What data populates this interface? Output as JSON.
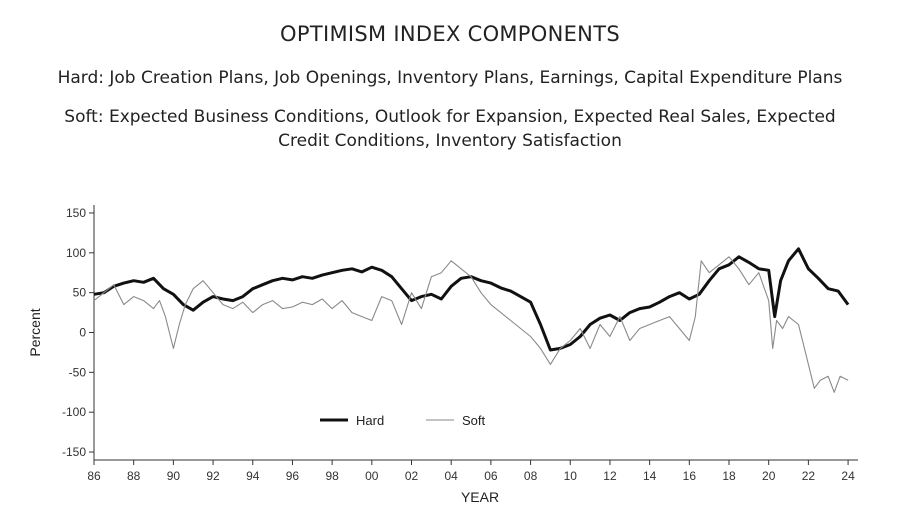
{
  "header": {
    "title": "OPTIMISM INDEX COMPONENTS",
    "hard_line": "Hard: Job Creation Plans, Job Openings, Inventory Plans, Earnings, Capital Expenditure Plans",
    "soft_line_1": "Soft: Expected Business Conditions, Outlook for Expansion, Expected Real Sales, Expected",
    "soft_line_2": "Credit Conditions, Inventory Satisfaction"
  },
  "chart_data": {
    "type": "line",
    "xlabel": "YEAR",
    "ylabel": "Percent",
    "xlim": [
      1986,
      2024.5
    ],
    "ylim": [
      -160,
      160
    ],
    "x_ticks": [
      1986,
      1988,
      1990,
      1992,
      1994,
      1996,
      1998,
      2000,
      2002,
      2004,
      2006,
      2008,
      2010,
      2012,
      2014,
      2016,
      2018,
      2020,
      2022,
      2024
    ],
    "x_tick_labels": [
      "86",
      "88",
      "90",
      "92",
      "94",
      "96",
      "98",
      "00",
      "02",
      "04",
      "06",
      "08",
      "10",
      "12",
      "14",
      "16",
      "18",
      "20",
      "22",
      "24"
    ],
    "y_ticks": [
      150,
      100,
      50,
      0,
      -50,
      -100,
      -150
    ],
    "y_tick_labels": [
      "150",
      "100",
      "50",
      "0",
      "-50",
      "-100",
      "-150"
    ],
    "grid": false,
    "legend": {
      "placement": "bottom-center",
      "entries": [
        "Hard",
        "Soft"
      ]
    },
    "series": [
      {
        "name": "Hard",
        "color": "#111111",
        "x": [
          1986,
          1986.5,
          1987,
          1987.5,
          1988,
          1988.5,
          1989,
          1989.5,
          1990,
          1990.5,
          1991,
          1991.5,
          1992,
          1992.5,
          1993,
          1993.5,
          1994,
          1994.5,
          1995,
          1995.5,
          1996,
          1996.5,
          1997,
          1997.5,
          1998,
          1998.5,
          1999,
          1999.5,
          2000,
          2000.5,
          2001,
          2001.5,
          2002,
          2002.5,
          2003,
          2003.5,
          2004,
          2004.5,
          2005,
          2005.5,
          2006,
          2006.5,
          2007,
          2007.5,
          2008,
          2008.5,
          2009,
          2009.5,
          2010,
          2010.5,
          2011,
          2011.5,
          2012,
          2012.5,
          2013,
          2013.5,
          2014,
          2014.5,
          2015,
          2015.5,
          2016,
          2016.5,
          2017,
          2017.5,
          2018,
          2018.5,
          2019,
          2019.5,
          2020,
          2020.3,
          2020.6,
          2021,
          2021.5,
          2021.8,
          2022,
          2022.5,
          2023,
          2023.5,
          2024
        ],
        "values": [
          48,
          50,
          58,
          62,
          65,
          63,
          68,
          55,
          48,
          35,
          28,
          38,
          45,
          42,
          40,
          45,
          55,
          60,
          65,
          68,
          66,
          70,
          68,
          72,
          75,
          78,
          80,
          76,
          82,
          78,
          70,
          55,
          40,
          45,
          48,
          42,
          58,
          68,
          70,
          65,
          62,
          56,
          52,
          45,
          38,
          10,
          -22,
          -20,
          -15,
          -5,
          10,
          18,
          22,
          15,
          25,
          30,
          32,
          38,
          45,
          50,
          42,
          48,
          65,
          80,
          85,
          95,
          88,
          80,
          78,
          20,
          65,
          90,
          105,
          90,
          80,
          68,
          55,
          52,
          35
        ]
      },
      {
        "name": "Soft",
        "color": "#8a8a8a",
        "x": [
          1986,
          1986.5,
          1987,
          1987.5,
          1988,
          1988.5,
          1989,
          1989.3,
          1989.6,
          1990,
          1990.3,
          1990.6,
          1991,
          1991.5,
          1992,
          1992.5,
          1993,
          1993.5,
          1994,
          1994.5,
          1995,
          1995.5,
          1996,
          1996.5,
          1997,
          1997.5,
          1998,
          1998.5,
          1999,
          1999.5,
          2000,
          2000.5,
          2001,
          2001.5,
          2002,
          2002.5,
          2003,
          2003.5,
          2004,
          2004.5,
          2005,
          2005.5,
          2006,
          2006.5,
          2007,
          2007.5,
          2008,
          2008.5,
          2009,
          2009.5,
          2010,
          2010.5,
          2011,
          2011.5,
          2012,
          2012.5,
          2013,
          2013.5,
          2014,
          2014.5,
          2015,
          2015.5,
          2016,
          2016.3,
          2016.6,
          2017,
          2017.5,
          2018,
          2018.5,
          2019,
          2019.5,
          2020,
          2020.2,
          2020.4,
          2020.7,
          2021,
          2021.5,
          2022,
          2022.3,
          2022.6,
          2023,
          2023.3,
          2023.6,
          2024
        ],
        "values": [
          40,
          50,
          60,
          35,
          45,
          40,
          30,
          40,
          20,
          -20,
          10,
          35,
          55,
          65,
          50,
          35,
          30,
          38,
          25,
          35,
          40,
          30,
          32,
          38,
          35,
          42,
          30,
          40,
          25,
          20,
          15,
          45,
          40,
          10,
          50,
          30,
          70,
          75,
          90,
          80,
          70,
          50,
          35,
          25,
          15,
          5,
          -5,
          -20,
          -40,
          -20,
          -10,
          5,
          -20,
          10,
          -5,
          20,
          -10,
          5,
          10,
          15,
          20,
          5,
          -10,
          20,
          90,
          75,
          85,
          95,
          80,
          60,
          75,
          40,
          -20,
          15,
          5,
          20,
          10,
          -40,
          -70,
          -60,
          -55,
          -75,
          -55,
          -60
        ]
      }
    ]
  }
}
